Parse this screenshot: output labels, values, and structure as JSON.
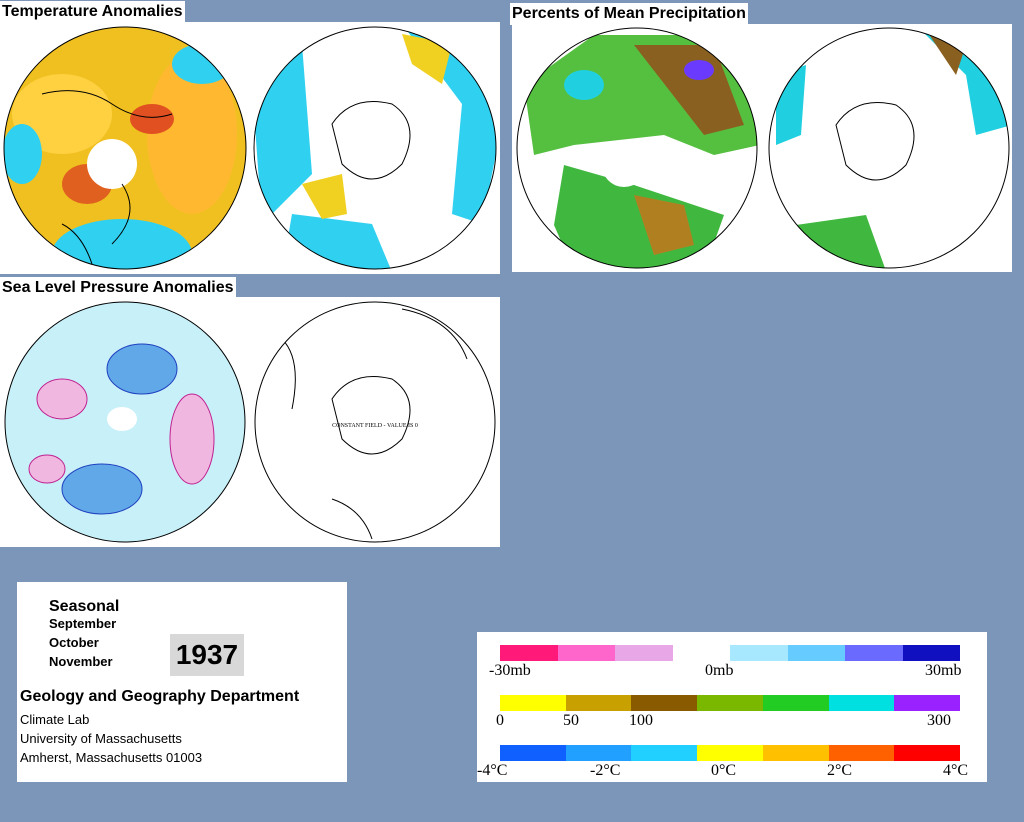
{
  "titles": {
    "temperature": "Temperature Anomalies",
    "precipitation": "Percents of Mean Precipitation",
    "pressure": "Sea Level Pressure Anomalies"
  },
  "pressure_map_note": "CONSTANT FIELD - VALUE IS 0",
  "info": {
    "period": "Seasonal",
    "months": [
      "September",
      "October",
      "November"
    ],
    "year": "1937",
    "department": "Geology and Geography Department",
    "lines": [
      "Climate Lab",
      "University of Massachusetts",
      "Amherst, Massachusetts 01003"
    ]
  },
  "legends": {
    "pressure": {
      "labels": [
        "-30mb",
        "0mb",
        "30mb"
      ],
      "colors": [
        "#ff1a7a",
        "#ff66cc",
        "#e8a8e8",
        "#ffffff",
        "#a8e8ff",
        "#66ccff",
        "#6a6aff",
        "#1010c0"
      ]
    },
    "precipitation": {
      "labels": [
        "0",
        "50",
        "100",
        "300"
      ],
      "colors": [
        "#ffff00",
        "#c8a000",
        "#8a5a00",
        "#7ab800",
        "#22cc22",
        "#00e0e0",
        "#9a22ff"
      ]
    },
    "temperature": {
      "labels": [
        "-4°C",
        "-2°C",
        "0°C",
        "2°C",
        "4°C"
      ],
      "colors": [
        "#1060ff",
        "#22a0ff",
        "#22d0ff",
        "#ffff00",
        "#ffc000",
        "#ff6000",
        "#ff0000"
      ]
    }
  }
}
